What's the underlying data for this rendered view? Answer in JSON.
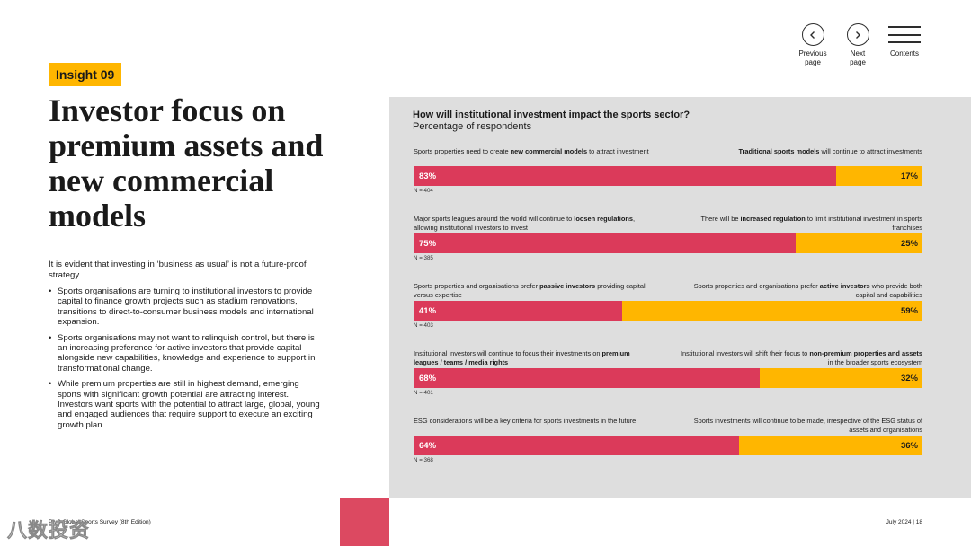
{
  "nav": {
    "previous_label": "Previous\npage",
    "next_label": "Next\npage",
    "contents_label": "Contents"
  },
  "insight_tag": "Insight 09",
  "title": "Investor focus on premium assets and new commercial models",
  "intro": "It is evident that investing in ‘business as usual’ is not a future-proof strategy.",
  "bullets": [
    "Sports organisations are turning to institutional investors to provide capital to finance growth projects such as stadium renovations, transitions to direct-to-consumer business models and international expansion.",
    "Sports organisations may not want to relinquish control, but there is an increasing preference for active investors that provide capital alongside new capabilities, knowledge and experience to support in transformational change.",
    "While premium properties are still in highest demand, emerging sports with significant growth potential are attracting interest. Investors want sports with the potential to attract large, global, young and engaged audiences that require support to execute an exciting growth plan."
  ],
  "colors": {
    "accent_yellow": "#FFB600",
    "bar_red": "#DB3A5A",
    "panel_gray": "#DEDEDE"
  },
  "chart_data": {
    "type": "bar",
    "orientation": "horizontal-stacked-100",
    "title": "How will institutional investment impact the sports sector?",
    "subtitle": "Percentage of respondents",
    "rows": [
      {
        "left_label_html": "Sports properties need to create <b>new commercial models</b> to attract investment",
        "right_label_html": "<b>Traditional sports models</b> will continue to attract investments",
        "left_value": 83,
        "right_value": 17,
        "left_text": "83%",
        "right_text": "17%",
        "n": "N = 404"
      },
      {
        "left_label_html": "Major sports leagues around the world will continue to <b>loosen regulations</b>, allowing institutional investors to invest",
        "right_label_html": "There will be <b>increased regulation</b> to limit institutional investment in sports franchises",
        "left_value": 75,
        "right_value": 25,
        "left_text": "75%",
        "right_text": "25%",
        "n": "N = 385"
      },
      {
        "left_label_html": "Sports properties and organisations prefer <b>passive investors</b> providing capital versus expertise",
        "right_label_html": "Sports properties and organisations prefer <b>active investors</b> who provide both capital and capabilities",
        "left_value": 41,
        "right_value": 59,
        "left_text": "41%",
        "right_text": "59%",
        "n": "N = 403"
      },
      {
        "left_label_html": "Institutional investors will continue to focus their investments on <b>premium leagues / teams / media rights</b>",
        "right_label_html": "Institutional investors will shift their focus to <b>non-premium properties and assets</b> in the broader sports ecosystem",
        "left_value": 68,
        "right_value": 32,
        "left_text": "68%",
        "right_text": "32%",
        "n": "N = 401"
      },
      {
        "left_label_html": "ESG considerations will be a key criteria for sports investments in the future",
        "right_label_html": "Sports investments will continue to be made, irrespective of the ESG status of assets and organisations",
        "left_value": 64,
        "right_value": 36,
        "left_text": "64%",
        "right_text": "36%",
        "n": "N = 368"
      }
    ]
  },
  "footer": {
    "left": "PwC Global Sports Survey (8th Edition)",
    "right": "July 2024 | 18"
  },
  "watermark": "八数投资"
}
